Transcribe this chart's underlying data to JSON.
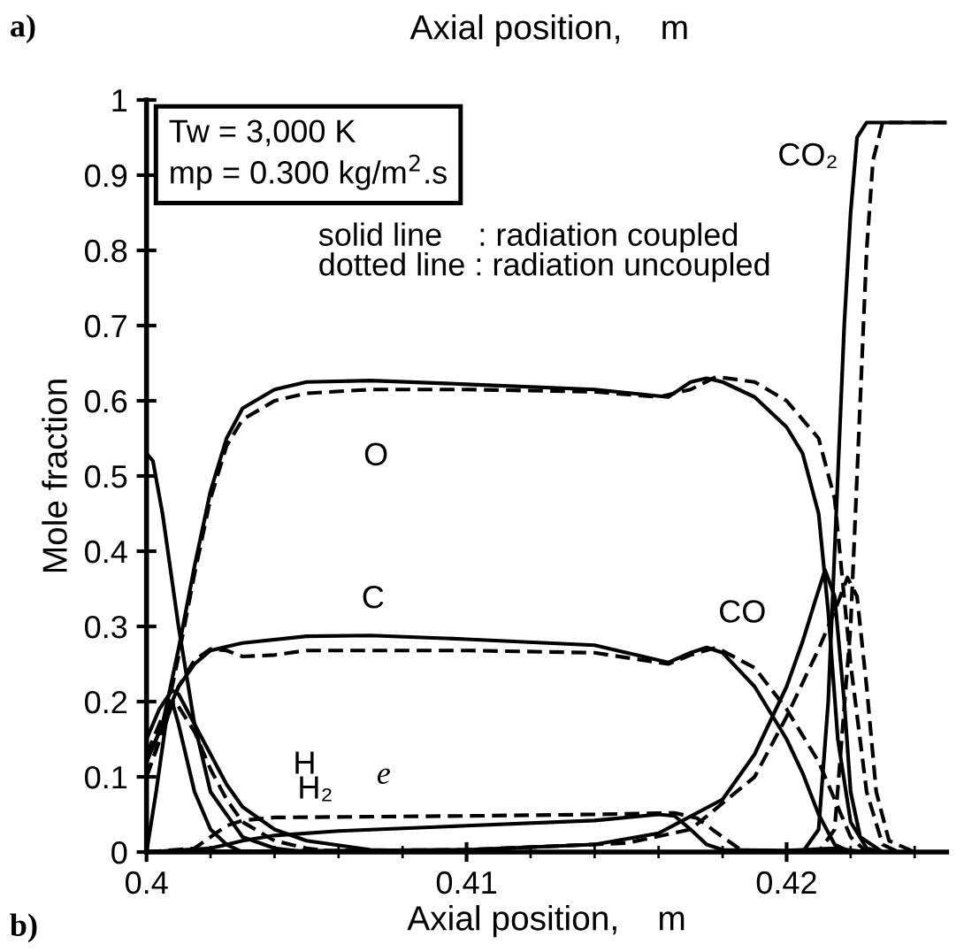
{
  "chart_data": {
    "type": "line",
    "xlabel": "Axial position,    m",
    "ylabel": "Mole fraction",
    "xlim": [
      0.4,
      0.425
    ],
    "ylim": [
      0,
      1
    ],
    "xticks": [
      0.4,
      0.41,
      0.42,
      {
        "value": 0.402,
        "label": null
      },
      {
        "value": 0.404,
        "label": null
      },
      {
        "value": 0.406,
        "label": null
      },
      {
        "value": 0.408,
        "label": null
      },
      {
        "value": 0.412,
        "label": null
      },
      {
        "value": 0.414,
        "label": null
      },
      {
        "value": 0.416,
        "label": null
      },
      {
        "value": 0.418,
        "label": null
      },
      {
        "value": 0.422,
        "label": null
      },
      {
        "value": 0.424,
        "label": null
      }
    ],
    "yticks": [
      0,
      0.1,
      0.2,
      0.3,
      0.4,
      0.5,
      0.6,
      0.7,
      0.8,
      0.9,
      1
    ],
    "grid": false,
    "marker": "none",
    "series": [
      {
        "color": "#000000",
        "line_style": "solid",
        "x": [
          0.4,
          0.4005,
          0.401,
          0.4015,
          0.402,
          0.4025,
          0.403,
          0.404,
          0.405,
          0.407,
          0.41,
          0.414,
          0.4163,
          0.417,
          0.4175,
          0.418,
          0.419,
          0.42,
          0.4205,
          0.421,
          0.4213,
          0.4216,
          0.422,
          0.4225,
          0.423
        ],
        "values": [
          0.12,
          0.17,
          0.27,
          0.38,
          0.48,
          0.55,
          0.59,
          0.615,
          0.625,
          0.627,
          0.622,
          0.615,
          0.605,
          0.625,
          0.63,
          0.625,
          0.605,
          0.565,
          0.53,
          0.45,
          0.32,
          0.15,
          0.04,
          0.005,
          0
        ]
      },
      {
        "color": "#000000",
        "line_style": "dashed",
        "x": [
          0.4,
          0.4005,
          0.401,
          0.4015,
          0.402,
          0.4025,
          0.403,
          0.404,
          0.405,
          0.407,
          0.41,
          0.414,
          0.416,
          0.417,
          0.4178,
          0.419,
          0.42,
          0.421,
          0.4215,
          0.422,
          0.4225,
          0.423,
          0.4235
        ],
        "values": [
          0.1,
          0.16,
          0.26,
          0.37,
          0.47,
          0.54,
          0.575,
          0.6,
          0.61,
          0.615,
          0.615,
          0.612,
          0.605,
          0.615,
          0.632,
          0.625,
          0.6,
          0.55,
          0.47,
          0.25,
          0.08,
          0.01,
          0
        ]
      },
      {
        "color": "#000000",
        "line_style": "solid",
        "x": [
          0.4,
          0.4005,
          0.401,
          0.4015,
          0.402,
          0.403,
          0.405,
          0.407,
          0.41,
          0.414,
          0.4163,
          0.417,
          0.4175,
          0.418,
          0.419,
          0.42,
          0.4205,
          0.421,
          0.4215,
          0.422
        ],
        "values": [
          0.12,
          0.17,
          0.22,
          0.25,
          0.268,
          0.278,
          0.287,
          0.288,
          0.283,
          0.275,
          0.252,
          0.265,
          0.272,
          0.265,
          0.22,
          0.15,
          0.105,
          0.05,
          0.01,
          0
        ]
      },
      {
        "color": "#000000",
        "line_style": "dashed",
        "x": [
          0.4,
          0.4005,
          0.401,
          0.4015,
          0.402,
          0.4025,
          0.403,
          0.404,
          0.405,
          0.41,
          0.414,
          0.4163,
          0.417,
          0.4178,
          0.419,
          0.42,
          0.421,
          0.4215,
          0.422,
          0.4225
        ],
        "values": [
          0.1,
          0.16,
          0.22,
          0.255,
          0.27,
          0.268,
          0.26,
          0.262,
          0.268,
          0.268,
          0.265,
          0.25,
          0.262,
          0.272,
          0.245,
          0.19,
          0.12,
          0.07,
          0.02,
          0
        ]
      },
      {
        "color": "#000000",
        "line_style": "solid",
        "x": [
          0.4,
          0.41,
          0.414,
          0.416,
          0.418,
          0.419,
          0.42,
          0.4205,
          0.4209,
          0.4212,
          0.4215,
          0.4218,
          0.422,
          0.4223,
          0.423
        ],
        "values": [
          0,
          0.003,
          0.01,
          0.025,
          0.07,
          0.13,
          0.22,
          0.28,
          0.335,
          0.375,
          0.34,
          0.2,
          0.08,
          0.02,
          0
        ]
      },
      {
        "color": "#000000",
        "line_style": "dashed",
        "x": [
          0.4,
          0.41,
          0.415,
          0.417,
          0.419,
          0.42,
          0.421,
          0.4215,
          0.4219,
          0.4222,
          0.4225,
          0.4228,
          0.4232,
          0.424
        ],
        "values": [
          0,
          0.003,
          0.012,
          0.03,
          0.1,
          0.18,
          0.27,
          0.32,
          0.365,
          0.34,
          0.22,
          0.08,
          0.015,
          0
        ]
      },
      {
        "color": "#000000",
        "line_style": "solid",
        "x": [
          0.4,
          0.4205,
          0.421,
          0.4213,
          0.4216,
          0.4218,
          0.422,
          0.4222,
          0.4225,
          0.425
        ],
        "values": [
          0,
          0,
          0.03,
          0.2,
          0.5,
          0.7,
          0.85,
          0.95,
          0.97,
          0.97
        ]
      },
      {
        "color": "#000000",
        "line_style": "dashed",
        "x": [
          0.4,
          0.421,
          0.4215,
          0.422,
          0.4223,
          0.4225,
          0.4227,
          0.423,
          0.425
        ],
        "values": [
          0,
          0,
          0.03,
          0.3,
          0.6,
          0.8,
          0.92,
          0.97,
          0.97
        ]
      },
      {
        "color": "#000000",
        "line_style": "solid",
        "x": [
          0.4,
          0.4002,
          0.4005,
          0.401,
          0.4015,
          0.402,
          0.403,
          0.404,
          0.405
        ],
        "values": [
          0.53,
          0.52,
          0.45,
          0.3,
          0.17,
          0.08,
          0.02,
          0.005,
          0
        ]
      },
      {
        "color": "#000000",
        "line_style": "solid",
        "x": [
          0.4,
          0.4004,
          0.4008,
          0.401,
          0.4015,
          0.402,
          0.4025,
          0.403,
          0.404,
          0.405,
          0.407,
          0.41
        ],
        "values": [
          0.15,
          0.19,
          0.215,
          0.21,
          0.17,
          0.13,
          0.09,
          0.06,
          0.03,
          0.015,
          0.003,
          0
        ]
      },
      {
        "color": "#000000",
        "line_style": "dashed",
        "x": [
          0.4,
          0.4005,
          0.4009,
          0.4015,
          0.402,
          0.4025,
          0.403,
          0.404,
          0.405,
          0.406
        ],
        "values": [
          0.13,
          0.18,
          0.2,
          0.16,
          0.11,
          0.07,
          0.04,
          0.015,
          0.005,
          0
        ]
      },
      {
        "color": "#000000",
        "line_style": "solid",
        "x": [
          0.4,
          0.4003,
          0.4006,
          0.4008,
          0.401,
          0.4015,
          0.402,
          0.4025,
          0.403
        ],
        "values": [
          0,
          0.08,
          0.17,
          0.2,
          0.17,
          0.08,
          0.03,
          0.01,
          0
        ]
      },
      {
        "color": "#000000",
        "line_style": "solid",
        "x": [
          0.4,
          0.402,
          0.403,
          0.404,
          0.406,
          0.41,
          0.414,
          0.416,
          0.4165,
          0.417,
          0.4175,
          0.418,
          0.42,
          0.4215,
          0.4225
        ],
        "values": [
          0,
          0.005,
          0.015,
          0.022,
          0.028,
          0.035,
          0.042,
          0.05,
          0.048,
          0.03,
          0.01,
          0.003,
          0.002,
          0.005,
          0
        ]
      },
      {
        "color": "#000000",
        "line_style": "dashed",
        "x": [
          0.4,
          0.4015,
          0.402,
          0.4025,
          0.403,
          0.404,
          0.41,
          0.414,
          0.4165,
          0.4172,
          0.418,
          0.4185,
          0.419,
          0.4225
        ],
        "values": [
          0,
          0.005,
          0.02,
          0.035,
          0.042,
          0.046,
          0.048,
          0.05,
          0.052,
          0.045,
          0.02,
          0.005,
          0,
          0
        ]
      }
    ],
    "annotations": [
      "a)",
      "b)",
      "Tw = 3,000 K\nmp = 0.300 kg/m$^{2}$.s",
      "solid line    : radiation coupled\ndotted line : radiation uncoupled",
      "O",
      "C",
      "CO",
      "CO₂",
      "H",
      "H₂",
      "e"
    ]
  }
}
